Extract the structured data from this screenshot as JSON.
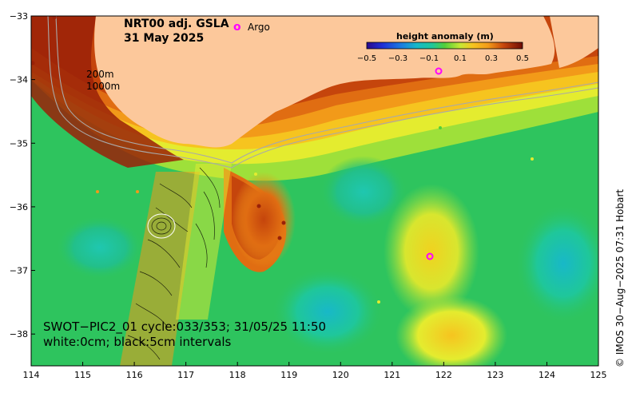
{
  "title": {
    "line1": "NRT00 adj. GSLA",
    "line2": "31 May 2025"
  },
  "legend": {
    "argo_symbol": "o",
    "argo_label": "Argo"
  },
  "colorbar": {
    "title": "height anomaly (m)",
    "ticks": [
      "−0.5",
      "−0.3",
      "−0.1",
      "0.1",
      "0.3",
      "0.5"
    ],
    "colors": [
      "#2a0a8c",
      "#1f2fd6",
      "#1c7be0",
      "#18b8c8",
      "#1fc79a",
      "#2ec45e",
      "#52cf3a",
      "#9ee03a",
      "#e4ec2f",
      "#f6c41f",
      "#f29a19",
      "#e06d12",
      "#c5450c",
      "#9a2108",
      "#6e0d05"
    ]
  },
  "isobath_labels": [
    "200m",
    "1000m"
  ],
  "swot": {
    "line1": "SWOT−PIC2_01 cycle:033/353; 31/05/25 11:50",
    "line2": "white:0cm; black:5cm intervals"
  },
  "credit": "© IMOS 30−Aug−2025 07:31 Hobart",
  "axes": {
    "x_ticks": [
      "114",
      "115",
      "116",
      "117",
      "118",
      "119",
      "120",
      "121",
      "122",
      "123",
      "124",
      "125"
    ],
    "y_ticks": [
      "−33",
      "−34",
      "−35",
      "−36",
      "−37",
      "−38"
    ],
    "x_range": [
      114,
      125
    ],
    "y_range": [
      -38.5,
      -33
    ]
  },
  "colors": {
    "land": "#fcc89b",
    "argo": "#ff00ff",
    "isobath": "#a9a9a9"
  }
}
